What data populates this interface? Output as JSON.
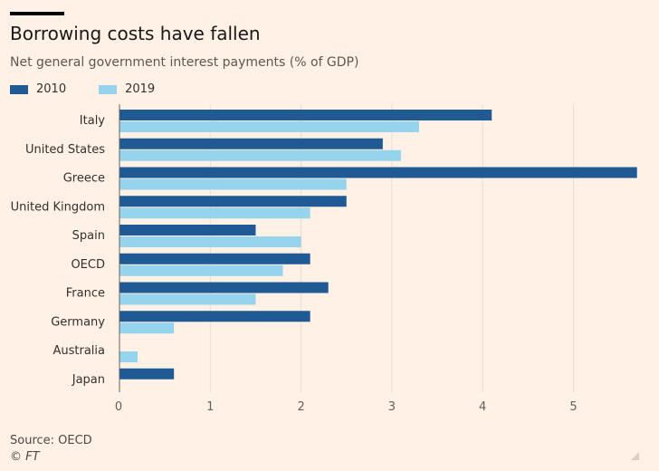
{
  "title": "Borrowing costs have fallen",
  "subtitle": "Net general government interest payments (% of GDP)",
  "source": "Source: OECD",
  "credit": "© FT",
  "colors": {
    "series_2010": "#1f5a94",
    "series_2019": "#96d3ec",
    "background": "#fff1e5",
    "gridline": "#e9ddd2"
  },
  "chart_data": {
    "type": "bar",
    "orientation": "horizontal",
    "categories": [
      "Italy",
      "United States",
      "Greece",
      "United Kingdom",
      "Spain",
      "OECD",
      "France",
      "Germany",
      "Australia",
      "Japan"
    ],
    "series": [
      {
        "name": "2010",
        "values": [
          4.1,
          2.9,
          5.7,
          2.5,
          1.5,
          2.1,
          2.3,
          2.1,
          0,
          0.6
        ]
      },
      {
        "name": "2019",
        "values": [
          3.3,
          3.1,
          2.5,
          2.1,
          2.0,
          1.8,
          1.5,
          0.6,
          0.2,
          null
        ]
      }
    ],
    "xticks": [
      "0",
      "1",
      "2",
      "3",
      "4",
      "5"
    ],
    "xlim": [
      0,
      5.7
    ],
    "xlabel": "",
    "ylabel": "",
    "grid": true,
    "legend": "top-left"
  }
}
